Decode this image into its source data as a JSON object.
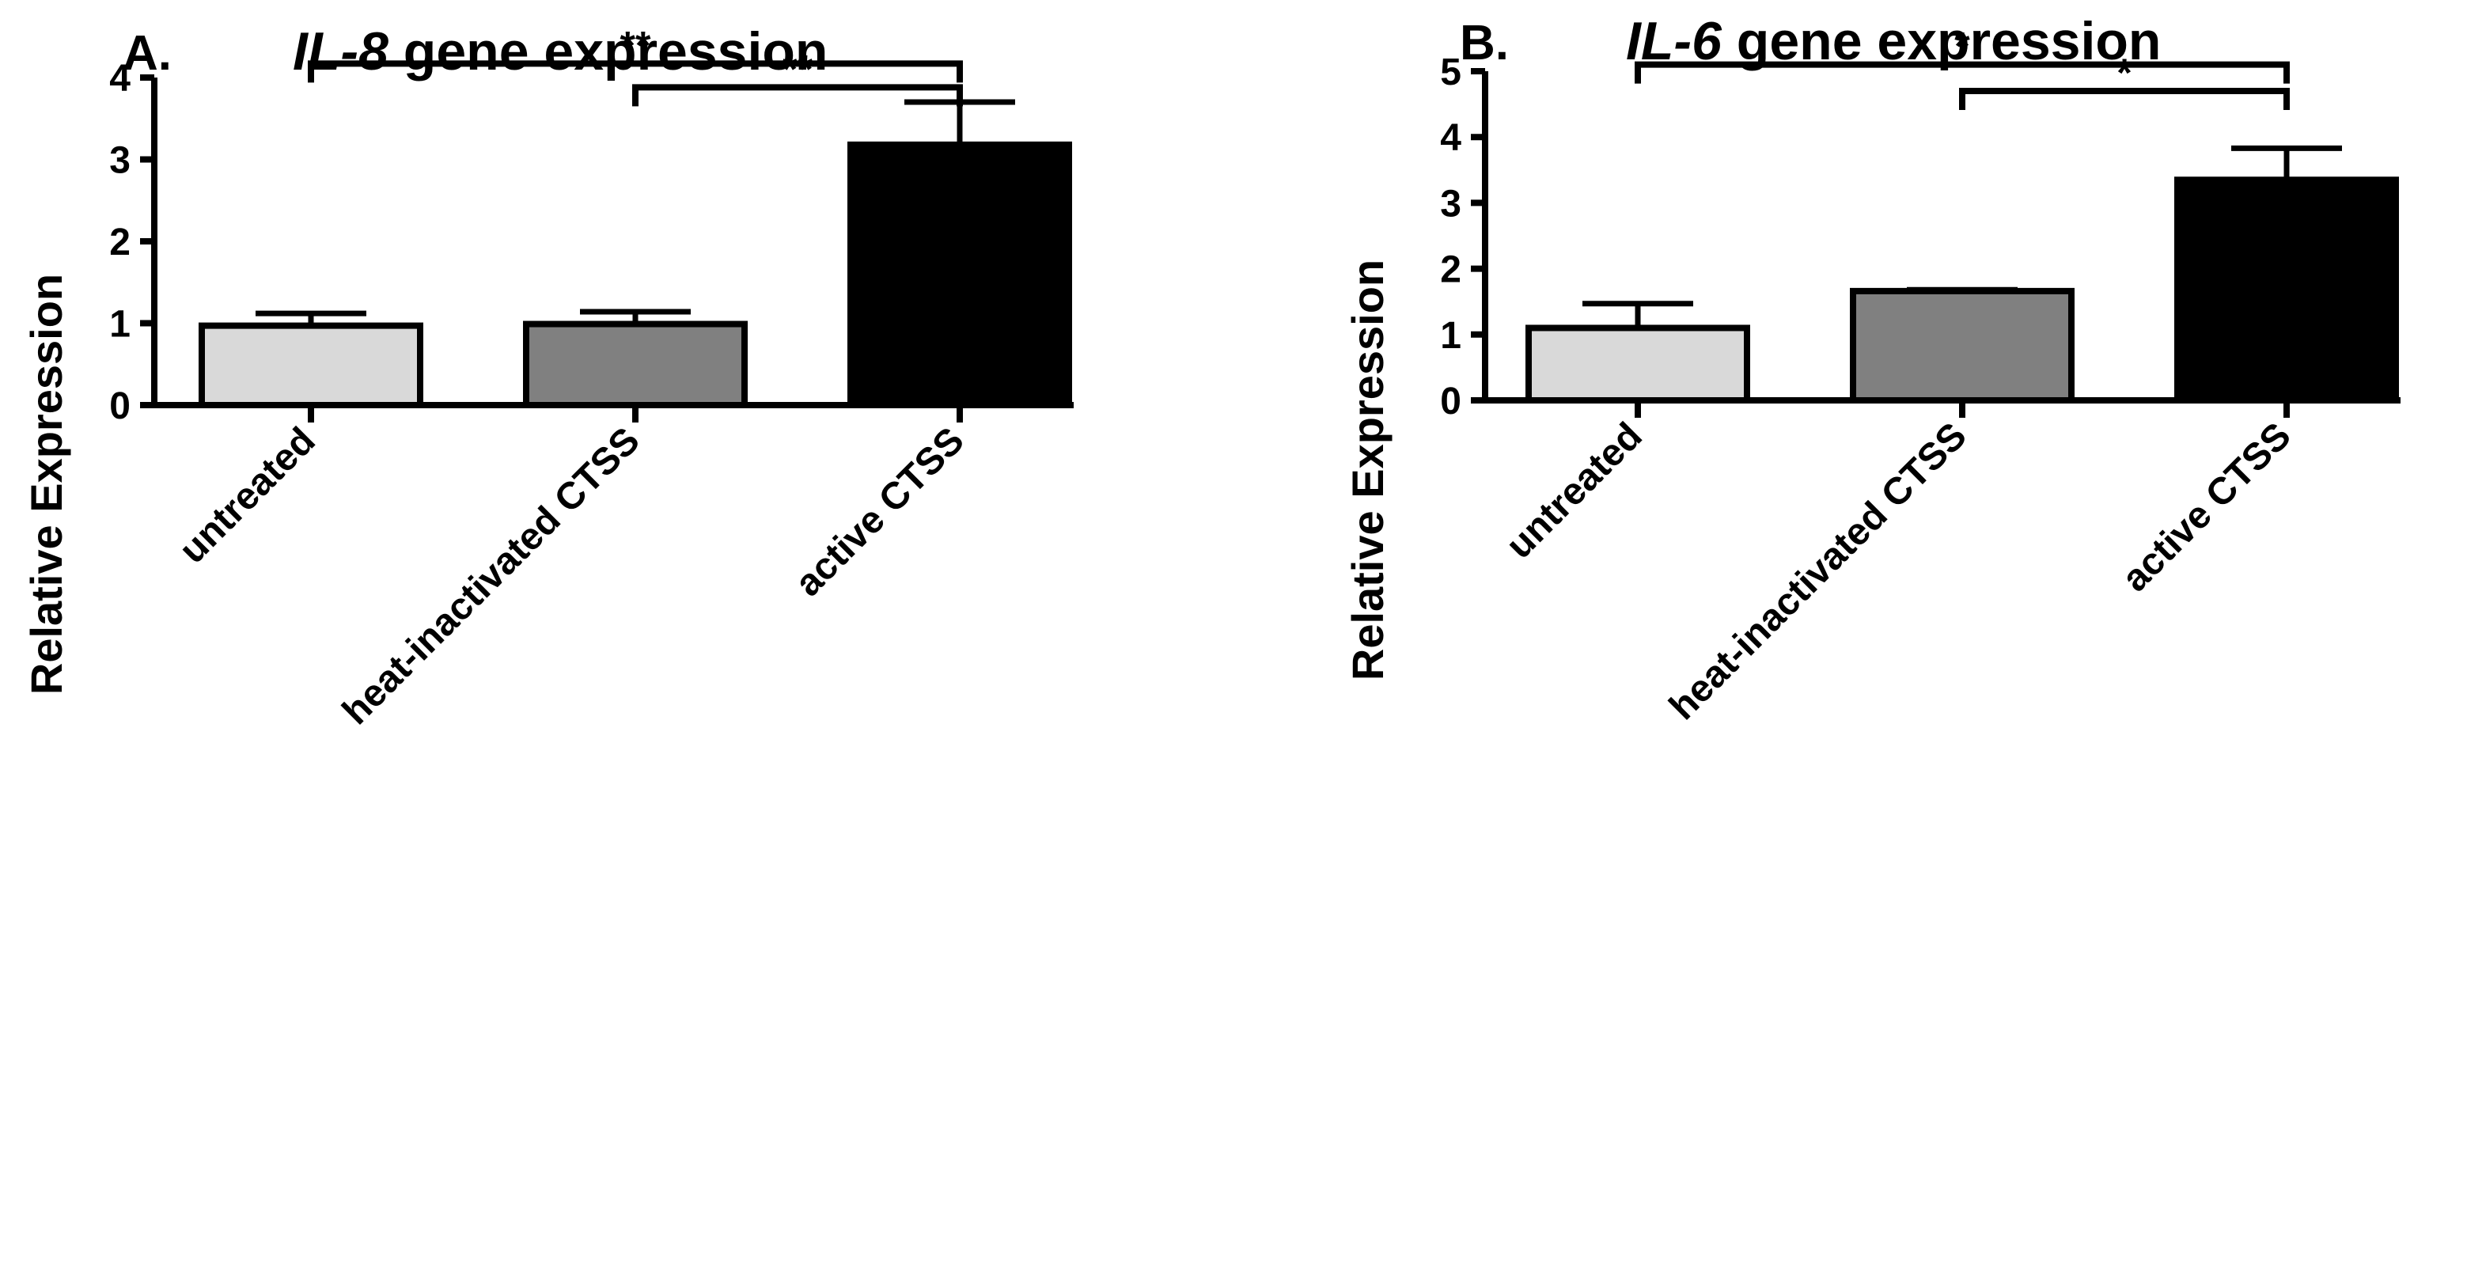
{
  "chart_data": [
    {
      "type": "bar",
      "panel_label": "A.",
      "title_gene": "IL-8",
      "title_rest": " gene expression",
      "ylabel": "Relative Expression",
      "categories": [
        "untreated",
        "heat-inactivated CTSS",
        "active CTSS"
      ],
      "values": [
        0.97,
        0.99,
        3.18
      ],
      "errors": [
        0.15,
        0.15,
        0.52
      ],
      "colors": [
        "#d9d9d9",
        "#808080",
        "#000000"
      ],
      "ylim": [
        0,
        4
      ],
      "yticks": [
        "0",
        "1",
        "2",
        "3",
        "4"
      ],
      "significance": [
        {
          "from": 0,
          "to": 2,
          "y": 4.17,
          "label": "**"
        },
        {
          "from": 1,
          "to": 2,
          "y": 3.88,
          "label": "**"
        }
      ]
    },
    {
      "type": "bar",
      "panel_label": "B.",
      "title_gene": "IL-6",
      "title_rest": " gene expression",
      "ylabel": "Relative Expression",
      "categories": [
        "untreated",
        "heat-inactivated CTSS",
        "active CTSS"
      ],
      "values": [
        1.1,
        1.66,
        3.35
      ],
      "errors": [
        0.37,
        0.02,
        0.48
      ],
      "colors": [
        "#d9d9d9",
        "#808080",
        "#000000"
      ],
      "ylim": [
        0,
        5
      ],
      "yticks": [
        "0",
        "1",
        "2",
        "3",
        "4",
        "5"
      ],
      "significance": [
        {
          "from": 0,
          "to": 2,
          "y": 5.1,
          "label": "*"
        },
        {
          "from": 1,
          "to": 2,
          "y": 4.7,
          "label": "*"
        }
      ]
    }
  ]
}
